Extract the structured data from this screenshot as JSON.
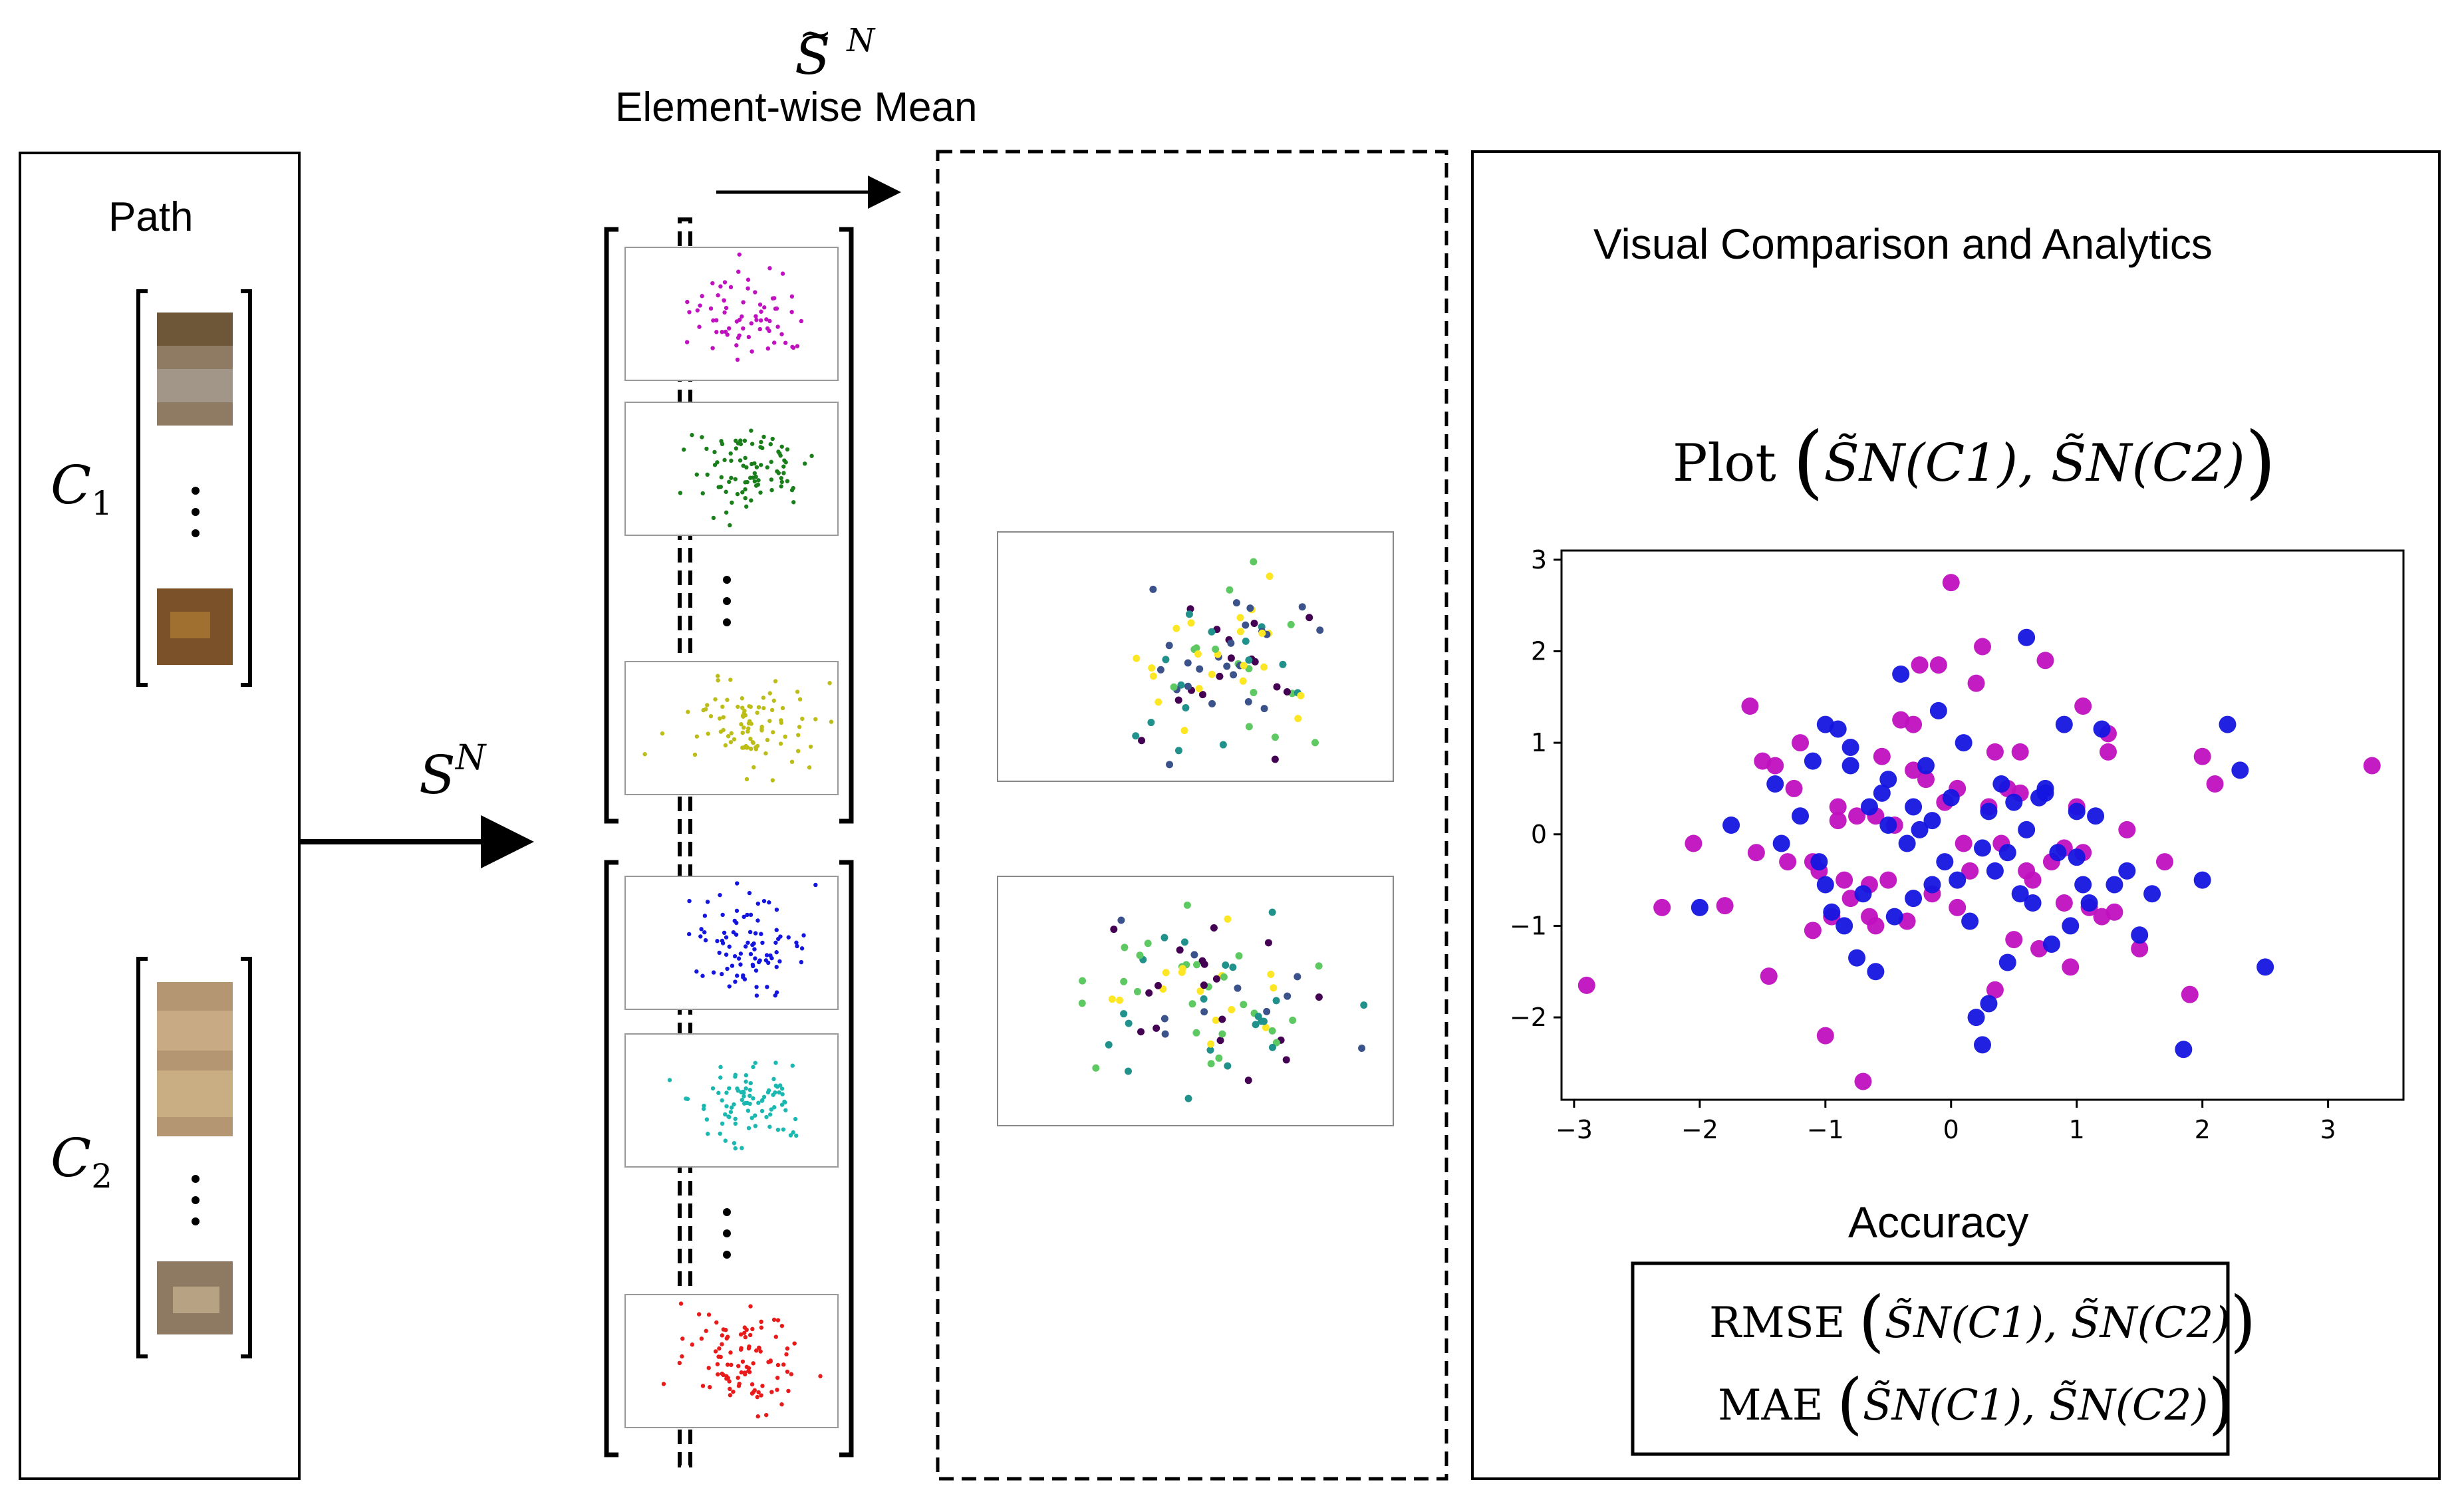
{
  "title": {
    "symbol_base": "S",
    "symbol_sup": "N",
    "caption": "Element-wise Mean"
  },
  "path_panel": {
    "title": "Path",
    "class1_base": "C",
    "class1_sub": "1",
    "class2_base": "C",
    "class2_sub": "2",
    "ellipsis": "⋮"
  },
  "transform": {
    "base": "S",
    "sup": "N"
  },
  "analytics": {
    "title": "Visual Comparison and Analytics",
    "plot_word": "Plot",
    "args": "S̃N(C1), S̃N(C2)",
    "accuracy_title": "Accuracy",
    "metric1": "RMSE",
    "metric2": "MAE"
  },
  "colors": {
    "magenta": "#c010c0",
    "green": "#1a7f1a",
    "olive": "#bdbd17",
    "blue": "#1515e0",
    "cyan": "#1ab8b0",
    "red": "#e81a1a",
    "viridis": [
      "#440154",
      "#3b528b",
      "#21918c",
      "#5ec962",
      "#fde725"
    ]
  },
  "chart_data": [
    {
      "type": "scatter",
      "title": "Plot of S̃N(C1) and S̃N(C2)",
      "xlabel": "",
      "ylabel": "",
      "xlim": [
        -3.1,
        3.6
      ],
      "ylim": [
        -2.9,
        3.1
      ],
      "xticks": [
        "−3",
        "−2",
        "−1",
        "0",
        "1",
        "2",
        "3"
      ],
      "yticks": [
        "−2",
        "−1",
        "0",
        "1",
        "2",
        "3"
      ],
      "series": [
        {
          "name": "S̃N(C1)",
          "color": "#c010c0",
          "x": [
            -2.9,
            -2.3,
            -2.05,
            -1.8,
            -1.6,
            -1.55,
            -1.5,
            -1.45,
            -1.4,
            -1.3,
            -1.25,
            -1.2,
            -1.1,
            -1.05,
            -1.0,
            -0.95,
            -0.9,
            -0.85,
            -0.8,
            -0.75,
            -0.7,
            -0.65,
            -0.6,
            -0.55,
            -0.5,
            -0.45,
            -0.4,
            -0.35,
            -0.3,
            -0.25,
            -0.2,
            -0.15,
            -0.1,
            -0.05,
            0.0,
            0.05,
            0.1,
            0.15,
            0.2,
            0.25,
            0.3,
            0.35,
            0.4,
            0.45,
            0.5,
            0.55,
            0.6,
            0.65,
            0.7,
            0.75,
            0.8,
            0.9,
            0.95,
            1.0,
            1.05,
            1.1,
            1.2,
            1.25,
            1.3,
            1.4,
            1.5,
            1.7,
            1.9,
            2.0,
            2.1,
            3.35,
            -0.65,
            -0.6,
            0.05,
            0.35,
            0.55,
            0.9,
            -1.1,
            -0.9,
            -0.3,
            1.05,
            1.25
          ],
          "y": [
            -1.65,
            -0.8,
            -0.1,
            -0.78,
            1.4,
            -0.2,
            0.8,
            -1.55,
            0.75,
            -0.3,
            0.5,
            1.0,
            -1.05,
            -0.4,
            -2.2,
            -0.9,
            0.3,
            -0.5,
            -0.7,
            0.2,
            -2.7,
            -0.9,
            -1.0,
            0.85,
            -0.5,
            0.1,
            1.25,
            -0.95,
            1.2,
            1.85,
            0.6,
            -0.65,
            1.85,
            0.35,
            2.75,
            0.5,
            -0.1,
            -0.4,
            1.65,
            2.05,
            0.3,
            -1.7,
            -0.1,
            0.5,
            -1.15,
            0.9,
            -0.4,
            -0.5,
            -1.25,
            1.9,
            -0.3,
            -0.75,
            -1.45,
            0.3,
            1.4,
            -0.8,
            -0.9,
            1.1,
            -0.85,
            0.05,
            -1.25,
            -0.3,
            -1.75,
            0.85,
            0.55,
            0.75,
            -0.55,
            0.2,
            -0.8,
            0.9,
            0.45,
            -0.15,
            -0.3,
            0.15,
            0.7,
            -0.2,
            0.9
          ]
        },
        {
          "name": "S̃N(C2)",
          "color": "#1515e0",
          "x": [
            -2.0,
            -1.75,
            -1.4,
            -1.35,
            -1.2,
            -1.1,
            -1.05,
            -1.0,
            -0.95,
            -0.9,
            -0.85,
            -0.8,
            -0.75,
            -0.7,
            -0.65,
            -0.6,
            -0.55,
            -0.5,
            -0.45,
            -0.4,
            -0.35,
            -0.3,
            -0.25,
            -0.2,
            -0.15,
            -0.1,
            -0.05,
            0.0,
            0.05,
            0.1,
            0.15,
            0.2,
            0.25,
            0.3,
            0.35,
            0.4,
            0.45,
            0.5,
            0.55,
            0.6,
            0.65,
            0.7,
            0.75,
            0.8,
            0.85,
            0.9,
            0.95,
            1.0,
            1.05,
            1.1,
            1.15,
            1.2,
            1.3,
            1.4,
            1.5,
            1.6,
            1.85,
            2.0,
            2.2,
            2.3,
            2.5,
            -0.5,
            -0.3,
            0.6,
            0.25,
            -0.8,
            1.0,
            0.45,
            -0.15,
            0.75,
            -1.0,
            0.3
          ],
          "y": [
            -0.8,
            0.1,
            0.55,
            -0.1,
            0.2,
            0.8,
            -0.3,
            1.2,
            -0.85,
            1.15,
            -1.0,
            0.75,
            -1.35,
            -0.65,
            0.3,
            -1.5,
            0.45,
            0.1,
            -0.9,
            1.75,
            -0.1,
            0.3,
            0.05,
            0.75,
            -0.55,
            1.35,
            -0.3,
            0.4,
            -0.5,
            1.0,
            -0.95,
            -2.0,
            -2.3,
            0.25,
            -0.4,
            0.55,
            -1.4,
            0.35,
            -0.65,
            2.15,
            -0.75,
            0.4,
            0.5,
            -1.2,
            -0.2,
            1.2,
            -1.0,
            -0.25,
            -0.55,
            -0.75,
            0.2,
            1.15,
            -0.55,
            -0.4,
            -1.1,
            -0.65,
            -2.35,
            -0.5,
            1.2,
            0.7,
            -1.45,
            0.6,
            -0.7,
            0.05,
            -0.15,
            0.95,
            0.25,
            -0.2,
            0.15,
            0.45,
            -0.55,
            -1.85
          ]
        }
      ]
    }
  ]
}
